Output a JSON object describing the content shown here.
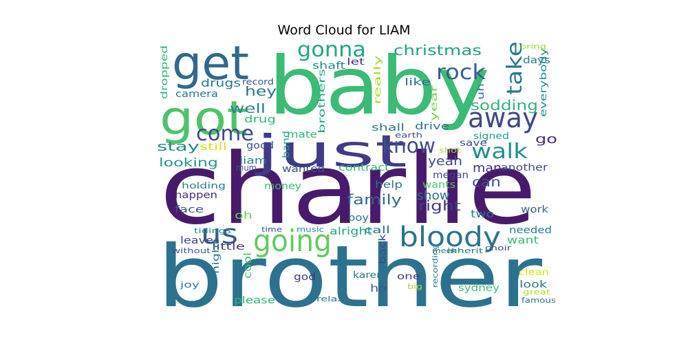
{
  "title": "Word Cloud for LIAM",
  "words": [
    {
      "text": "charlie",
      "color": "#481a6c"
    },
    {
      "text": "brother",
      "color": "#2c728e"
    },
    {
      "text": "baby",
      "color": "#3bbb75"
    },
    {
      "text": "just",
      "color": "#3f3b86"
    },
    {
      "text": "get",
      "color": "#31688e"
    },
    {
      "text": "got",
      "color": "#4ec36b"
    },
    {
      "text": "going",
      "color": "#62cb5f"
    },
    {
      "text": "bloody",
      "color": "#2b758e"
    },
    {
      "text": "away",
      "color": "#3e4989"
    },
    {
      "text": "us",
      "color": "#38598c"
    },
    {
      "text": "walk",
      "color": "#21918c"
    },
    {
      "text": "know",
      "color": "#3d4d8a"
    },
    {
      "text": "rock",
      "color": "#365c8d"
    },
    {
      "text": "take",
      "color": "#2a788e"
    },
    {
      "text": "come",
      "color": "#3e4989"
    },
    {
      "text": "gonna",
      "color": "#21a685"
    },
    {
      "text": "christmas",
      "color": "#1fa187"
    },
    {
      "text": "family",
      "color": "#31688e"
    },
    {
      "text": "sodding",
      "color": "#2fb47c"
    },
    {
      "text": "hey",
      "color": "#2d708e"
    },
    {
      "text": "well",
      "color": "#277f8e"
    },
    {
      "text": "drugs",
      "color": "#2a788e"
    },
    {
      "text": "stay",
      "color": "#24868e"
    },
    {
      "text": "looking",
      "color": "#1f988b"
    },
    {
      "text": "right",
      "color": "#443983"
    },
    {
      "text": "yeah",
      "color": "#3e4a89"
    },
    {
      "text": "can",
      "color": "#3b528b"
    },
    {
      "text": "man",
      "color": "#46327e"
    },
    {
      "text": "show",
      "color": "#2d708e"
    },
    {
      "text": "go",
      "color": "#46307e"
    },
    {
      "text": "everybody",
      "color": "#23898e"
    },
    {
      "text": "uh",
      "color": "#2c728e"
    },
    {
      "text": "days",
      "color": "#2a788e"
    },
    {
      "text": "like",
      "color": "#2d708e"
    },
    {
      "text": "shaft",
      "color": "#25858e"
    },
    {
      "text": "let",
      "color": "#472c7a"
    },
    {
      "text": "brothers",
      "color": "#23a983"
    },
    {
      "text": "really",
      "color": "#addc30"
    },
    {
      "text": "year",
      "color": "#7ad151"
    },
    {
      "text": "drive",
      "color": "#2c728e"
    },
    {
      "text": "shall",
      "color": "#2a788e"
    },
    {
      "text": "mate",
      "color": "#2fb47c"
    },
    {
      "text": "drug",
      "color": "#2fb47c"
    },
    {
      "text": "camera",
      "color": "#2a788e"
    },
    {
      "text": "record",
      "color": "#38588c"
    },
    {
      "text": "dropped",
      "color": "#2fb47c"
    },
    {
      "text": "bring",
      "color": "#a0da39"
    },
    {
      "text": "still",
      "color": "#dde318"
    },
    {
      "text": "good",
      "color": "#3e4a89"
    },
    {
      "text": "band",
      "color": "#1f9e89"
    },
    {
      "text": "liam",
      "color": "#2a788e"
    },
    {
      "text": "mum",
      "color": "#3b528b"
    },
    {
      "text": "wanted",
      "color": "#3b528b"
    },
    {
      "text": "contract",
      "color": "#35b779"
    },
    {
      "text": "megan",
      "color": "#404387"
    },
    {
      "text": "another",
      "color": "#3e4a89"
    },
    {
      "text": "help",
      "color": "#2a788e"
    },
    {
      "text": "wants",
      "color": "#54c568"
    },
    {
      "text": "money",
      "color": "#3dbc74"
    },
    {
      "text": "holding",
      "color": "#2a788e"
    },
    {
      "text": "happen",
      "color": "#472d7b"
    },
    {
      "text": "face",
      "color": "#3b528b"
    },
    {
      "text": "oh",
      "color": "#6ccd5a"
    },
    {
      "text": "call",
      "color": "#2d708e"
    },
    {
      "text": "boy",
      "color": "#2c728e"
    },
    {
      "text": "two",
      "color": "#2c728e"
    },
    {
      "text": "work",
      "color": "#31688e"
    },
    {
      "text": "needed",
      "color": "#287d8e"
    },
    {
      "text": "want",
      "color": "#3aba76"
    },
    {
      "text": "alright",
      "color": "#22a785"
    },
    {
      "text": "tidings",
      "color": "#20928c"
    },
    {
      "text": "time",
      "color": "#3b528b"
    },
    {
      "text": "music",
      "color": "#21918c"
    },
    {
      "text": "leave",
      "color": "#404688"
    },
    {
      "text": "little",
      "color": "#443a83"
    },
    {
      "text": "without",
      "color": "#3b528b"
    },
    {
      "text": "back",
      "color": "#3e4a89"
    },
    {
      "text": "meek",
      "color": "#2a788e"
    },
    {
      "text": "inherit",
      "color": "#2a788e"
    },
    {
      "text": "choir",
      "color": "#3e4a89"
    },
    {
      "text": "night",
      "color": "#2a788e"
    },
    {
      "text": "cool",
      "color": "#44bf70"
    },
    {
      "text": "karen",
      "color": "#2a788e"
    },
    {
      "text": "one",
      "color": "#453781"
    },
    {
      "text": "god",
      "color": "#453781"
    },
    {
      "text": "ho",
      "color": "#3b528b"
    },
    {
      "text": "clean",
      "color": "#dde318"
    },
    {
      "text": "look",
      "color": "#2a788e"
    },
    {
      "text": "sydney",
      "color": "#3fbc73"
    },
    {
      "text": "great",
      "color": "#b5de2b"
    },
    {
      "text": "famous",
      "color": "#2a788e"
    },
    {
      "text": "joy",
      "color": "#2a788e"
    },
    {
      "text": "please",
      "color": "#2fb47c"
    },
    {
      "text": "relax",
      "color": "#2c728e"
    },
    {
      "text": "recording",
      "color": "#2a788e"
    },
    {
      "text": "big",
      "color": "#a0da39"
    },
    {
      "text": "earth",
      "color": "#3e4a89"
    },
    {
      "text": "shot",
      "color": "#a0da39"
    },
    {
      "text": "save",
      "color": "#3e4a89"
    },
    {
      "text": "signed",
      "color": "#1f9e89"
    }
  ]
}
